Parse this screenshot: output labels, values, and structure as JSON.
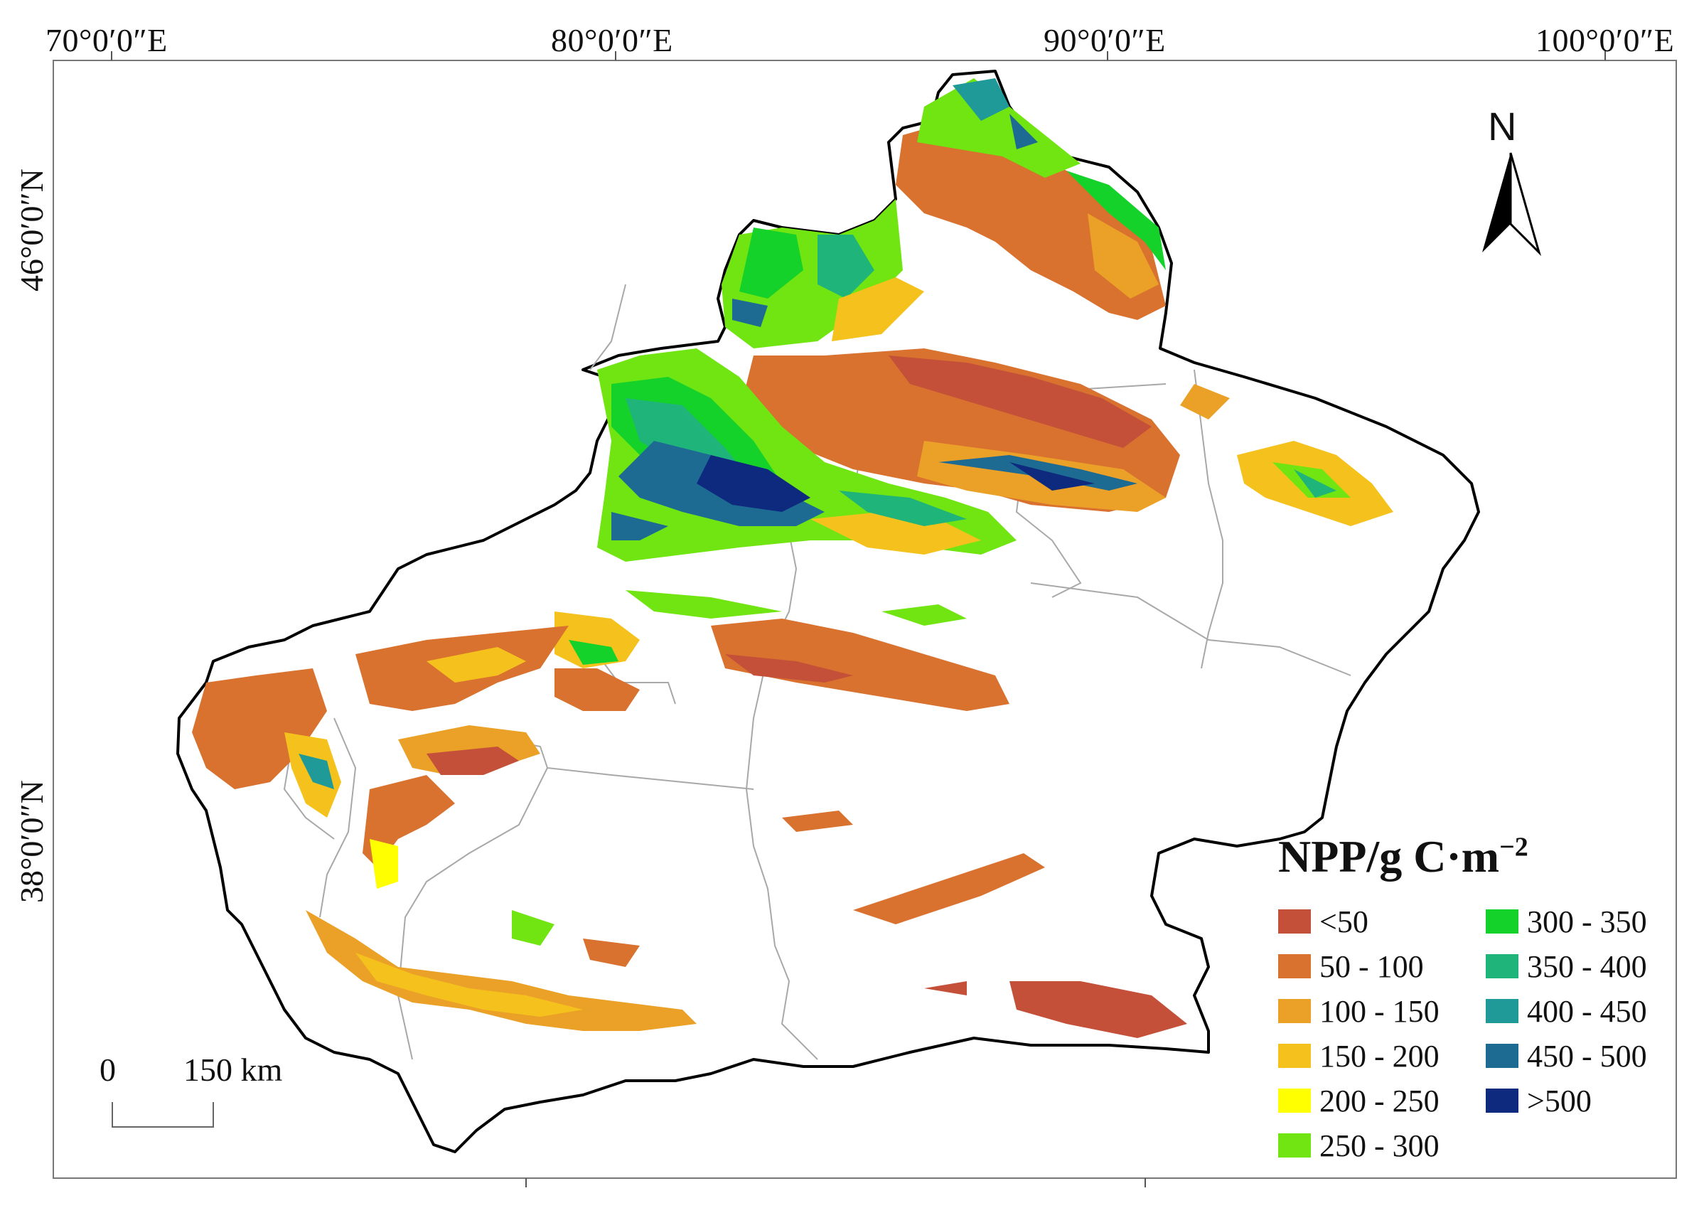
{
  "map": {
    "top_ticks": [
      "70°0′0″E",
      "80°0′0″E",
      "90°0′0″E",
      "100°0′0″E"
    ],
    "left_ticks": [
      "46°0′0″N",
      "38°0′0″N"
    ],
    "north_arrow": {
      "label": "N",
      "icon": "north-arrow-icon"
    },
    "scale_bar": {
      "start_label": "0",
      "end_label": "150 km"
    }
  },
  "legend": {
    "title_main": "NPP/g C·m",
    "title_superscript": "−2",
    "classes": [
      {
        "label": "<50",
        "color": "#c4503a"
      },
      {
        "label": "50 - 100",
        "color": "#d9712f"
      },
      {
        "label": "100 - 150",
        "color": "#eba128"
      },
      {
        "label": "150 - 200",
        "color": "#f5c21d"
      },
      {
        "label": "200 - 250",
        "color": "#ffff00"
      },
      {
        "label": "250 - 300",
        "color": "#70e512"
      },
      {
        "label": "300 - 350",
        "color": "#14d22a"
      },
      {
        "label": "350 - 400",
        "color": "#1fb47a"
      },
      {
        "label": "400 - 450",
        "color": "#1f9a98"
      },
      {
        "label": "450 - 500",
        "color": "#1d6a93"
      },
      {
        "label": ">500",
        "color": "#0e2a7e"
      }
    ]
  }
}
